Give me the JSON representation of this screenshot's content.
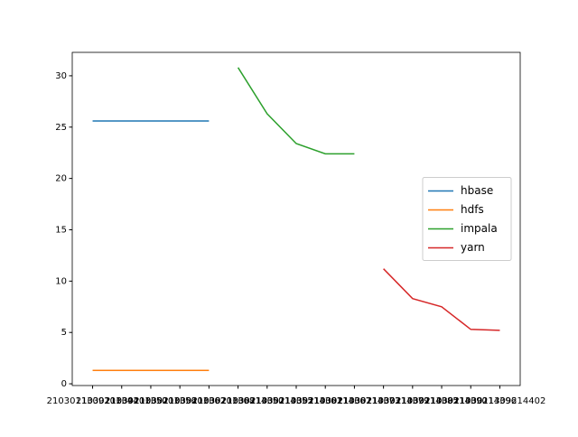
{
  "chart_data": {
    "type": "line",
    "categories": [
      "2103011309201344",
      "2103011309201350",
      "2103011309201356",
      "2103011309201362",
      "2103011309201368",
      "2103011309214350",
      "2103011309214355",
      "2103011309214361",
      "2103011309214367",
      "2103011309214373",
      "2103011309214379",
      "2103011309214385",
      "2103011309214390",
      "2103011309214396",
      "2103011309214402"
    ],
    "series": [
      {
        "name": "hbase",
        "color": "#1f77b4",
        "values": [
          25.6,
          25.6,
          25.6,
          25.6,
          25.6,
          null,
          null,
          null,
          null,
          null,
          null,
          null,
          null,
          null,
          null
        ]
      },
      {
        "name": "hdfs",
        "color": "#ff7f0e",
        "values": [
          1.3,
          1.3,
          1.3,
          1.3,
          1.3,
          null,
          null,
          null,
          null,
          null,
          null,
          null,
          null,
          null,
          null
        ]
      },
      {
        "name": "impala",
        "color": "#2ca02c",
        "values": [
          null,
          null,
          null,
          null,
          null,
          30.8,
          26.3,
          23.4,
          22.4,
          22.4,
          null,
          null,
          null,
          null,
          null
        ]
      },
      {
        "name": "yarn",
        "color": "#d62728",
        "values": [
          null,
          null,
          null,
          null,
          null,
          null,
          null,
          null,
          null,
          null,
          11.2,
          8.3,
          7.5,
          5.3,
          5.2
        ]
      }
    ],
    "ylim": [
      -0.17,
      32.28
    ],
    "yticks": [
      0,
      5,
      10,
      15,
      20,
      25,
      30
    ],
    "legend": "center right"
  }
}
